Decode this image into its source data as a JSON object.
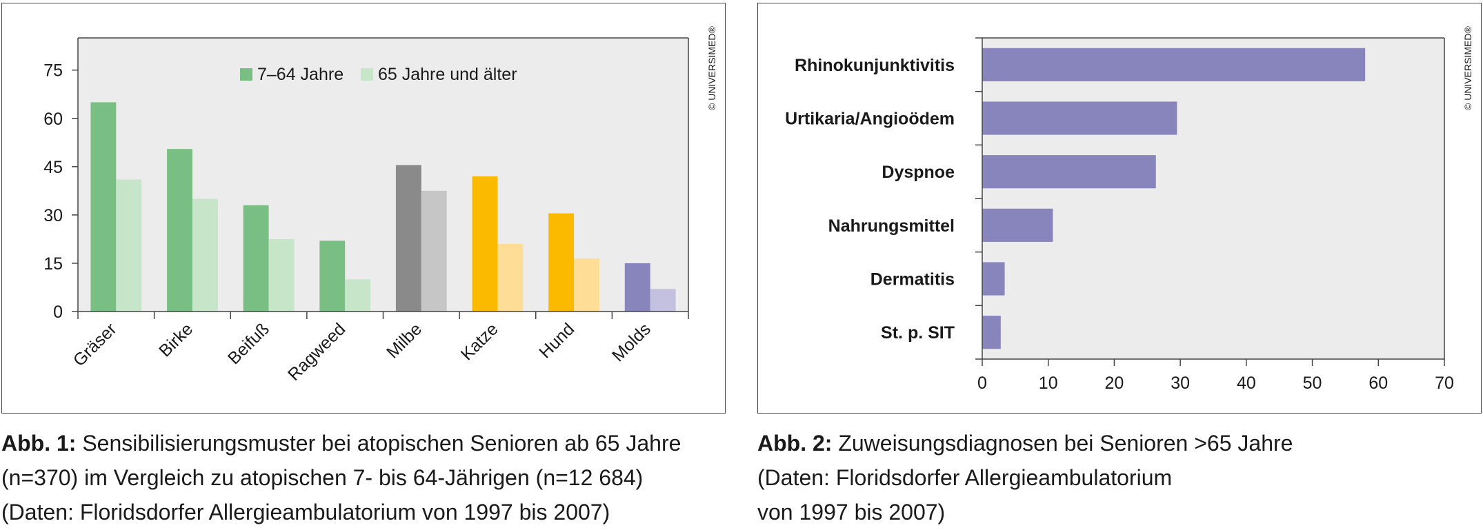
{
  "chart_data": [
    {
      "type": "bar",
      "categories": [
        "Gräser",
        "Birke",
        "Beifuß",
        "Ragweed",
        "Milbe",
        "Katze",
        "Hund",
        "Molds"
      ],
      "series": [
        {
          "name": "7–64 Jahre",
          "values": [
            65,
            50.5,
            33,
            22,
            45.5,
            42,
            30.5,
            15
          ]
        },
        {
          "name": "65 Jahre und älter",
          "values": [
            41,
            35,
            22.5,
            10,
            37.5,
            21,
            16.5,
            7
          ]
        }
      ],
      "ylim": [
        0,
        85
      ],
      "yticks": [
        "0",
        "15",
        "30",
        "45",
        "60",
        "75"
      ],
      "legend_position": "top-center",
      "grid": false,
      "colors": {
        "series1": [
          "#79bf83",
          "#79bf83",
          "#79bf83",
          "#79bf83",
          "#8a8a8a",
          "#fbb900",
          "#fbb900",
          "#8884bc"
        ],
        "series2": [
          "#c6e5c9",
          "#c6e5c9",
          "#c6e5c9",
          "#c6e5c9",
          "#c6c6c6",
          "#fedd96",
          "#fedd96",
          "#c3c0e0"
        ],
        "legend1": "#79bf83",
        "legend2": "#c6e5c9",
        "plot_background": "#ebeceb"
      },
      "copyright": "© UNIVERSIMED®"
    },
    {
      "type": "bar",
      "orientation": "horizontal",
      "categories": [
        "Rhinokunjunktivitis",
        "Urtikaria/Angioödem",
        "Dyspnoe",
        "Nahrungsmittel",
        "Dermatitis",
        "St. p. SIT"
      ],
      "values": [
        58,
        29.5,
        26.3,
        10.7,
        3.4,
        2.8
      ],
      "xlim": [
        0,
        70
      ],
      "xticks": [
        "0",
        "10",
        "20",
        "30",
        "40",
        "50",
        "60",
        "70"
      ],
      "grid": false,
      "colors": {
        "bar": "#8884bc",
        "plot_background": "#ebeceb"
      },
      "copyright": "© UNIVERSIMED®"
    }
  ],
  "captions": {
    "fig1": {
      "label": "Abb. 1:",
      "line1": " Sensibilisierungsmuster bei atopischen Senioren ab 65 Jahre",
      "line2": "(n=370) im Vergleich zu atopischen 7- bis 64-Jährigen (n=12 684)",
      "line3": "(Daten: Floridsdorfer Allergieambulatorium von 1997 bis 2007)"
    },
    "fig2": {
      "label": "Abb. 2:",
      "line1": " Zuweisungsdiagnosen bei Senioren >65 Jahre",
      "line2": "(Daten: Floridsdorfer Allergieambulatorium",
      "line3": "von 1997 bis 2007)"
    }
  }
}
